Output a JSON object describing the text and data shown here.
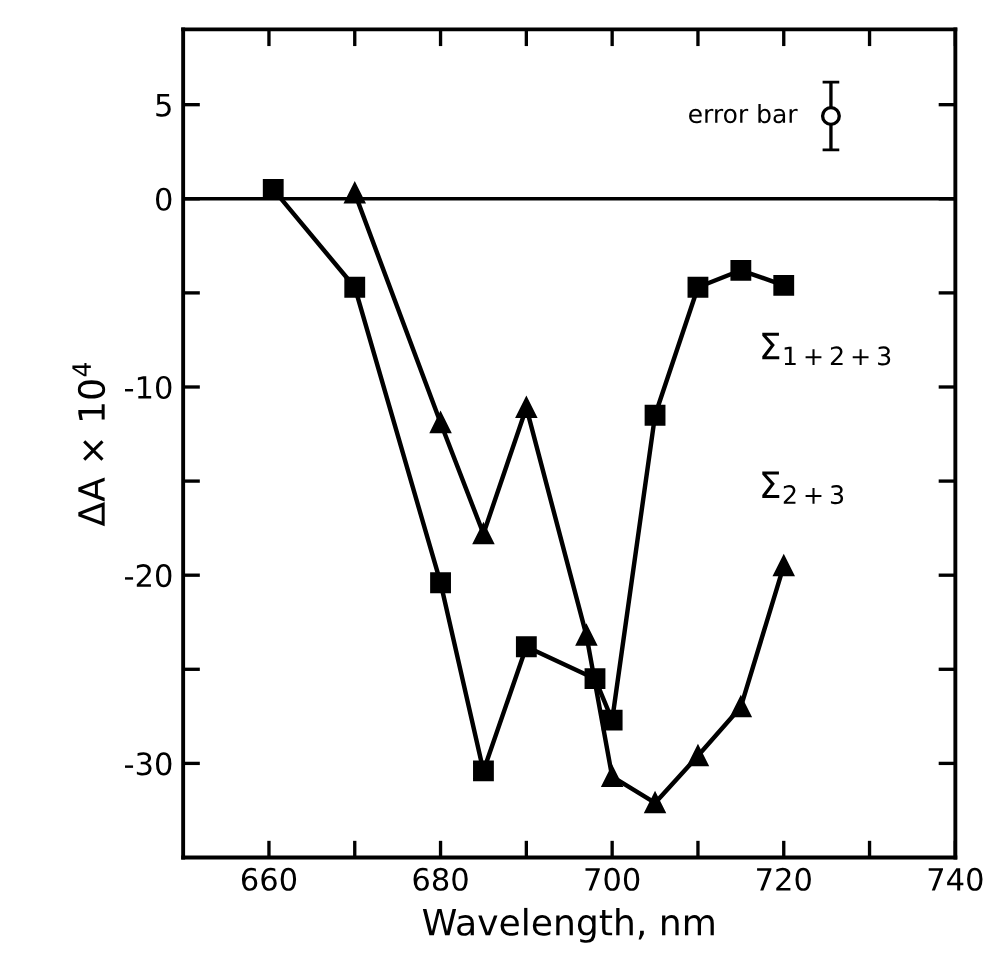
{
  "chart_data": {
    "type": "line",
    "xlabel": "Wavelength, nm",
    "ylabel": "ΔA × 10$^{4}$",
    "xlim": [
      650,
      740
    ],
    "ylim": [
      -35,
      9
    ],
    "xticks": [
      660,
      {
        "value": 670,
        "label": null
      },
      680,
      {
        "value": 690,
        "label": null
      },
      700,
      {
        "value": 710,
        "label": null
      },
      720,
      {
        "value": 730,
        "label": null
      },
      740
    ],
    "yticks": [
      5,
      0,
      {
        "value": -5,
        "label": null
      },
      -10,
      {
        "value": -15,
        "label": null
      },
      -20,
      {
        "value": -25,
        "label": null
      },
      -30
    ],
    "grid": false,
    "legend": false,
    "line_style": "solid",
    "ref_lines": [
      {
        "axis": "y",
        "value": 0,
        "color": "#000000"
      }
    ],
    "series": [
      {
        "name": "Σ$_{1+2+3}$",
        "color": "#000000",
        "marker": "square",
        "x": [
          660.5,
          670,
          680,
          685,
          690,
          698,
          700,
          705,
          710,
          715,
          720
        ],
        "values": [
          0.5,
          -4.7,
          -20.4,
          -30.4,
          -23.8,
          -25.5,
          -27.7,
          -11.5,
          -4.7,
          -3.8,
          -4.6
        ]
      },
      {
        "name": "Σ$_{2+3}$",
        "color": "#000000",
        "marker": "triangle",
        "x": [
          670,
          680,
          685,
          690,
          697,
          700,
          705,
          710,
          715,
          720
        ],
        "values": [
          0.3,
          -11.9,
          -17.8,
          -11.1,
          -23.2,
          -30.7,
          -32.1,
          -29.6,
          -27.0,
          -19.5
        ]
      },
      {
        "name": "error bar",
        "type": "scatter",
        "color": "#000000",
        "marker": "circle",
        "x": [
          725.5
        ],
        "values": [
          4.4
        ],
        "errors": [
          1.8
        ]
      }
    ]
  }
}
